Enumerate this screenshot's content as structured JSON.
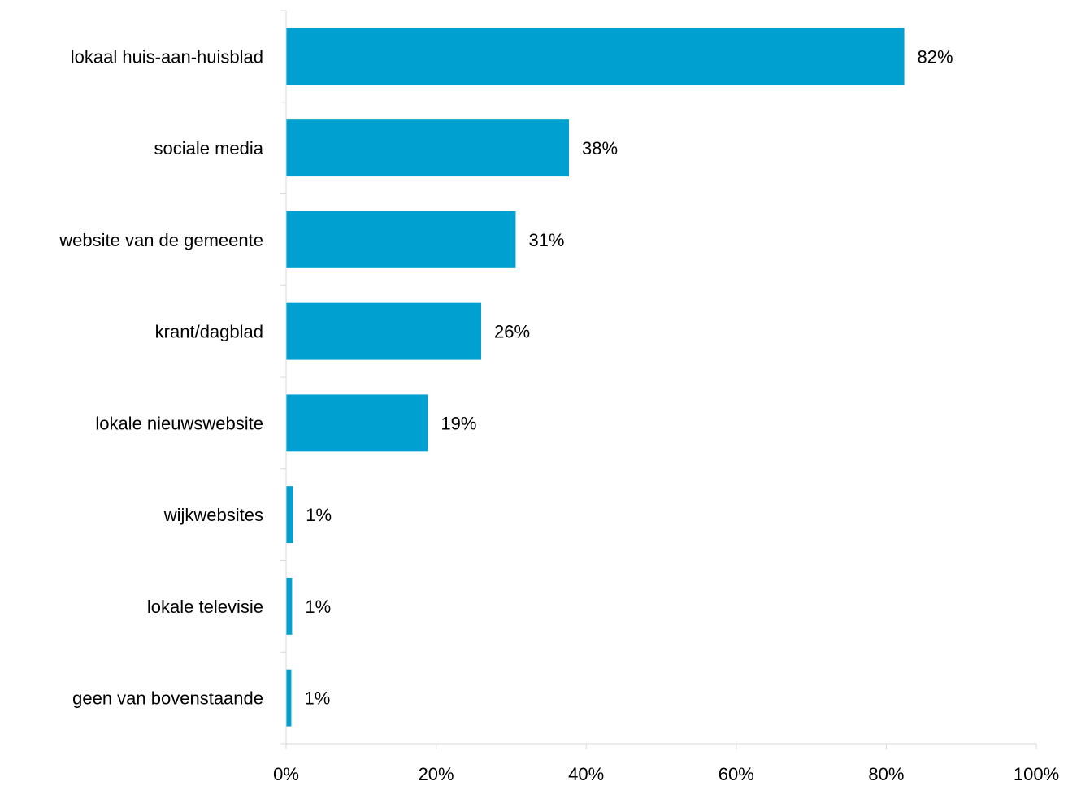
{
  "chart_data": {
    "type": "bar",
    "orientation": "horizontal",
    "categories": [
      "lokaal huis-aan-huisblad",
      "sociale media",
      "website van de gemeente",
      "krant/dagblad",
      "lokale nieuwswebsite",
      "wijkwebsites",
      "lokale televisie",
      "geen van bovenstaande"
    ],
    "values": [
      82.4,
      37.7,
      30.6,
      26.0,
      18.9,
      0.9,
      0.8,
      0.7
    ],
    "value_labels": [
      "82%",
      "38%",
      "31%",
      "26%",
      "19%",
      "1%",
      "1%",
      "1%"
    ],
    "x_ticks": [
      "0%",
      "20%",
      "40%",
      "60%",
      "80%",
      "100%"
    ],
    "xlim": [
      0,
      100
    ],
    "title": "",
    "xlabel": "",
    "ylabel": "",
    "grid": false,
    "legend": "none",
    "bar_color": "#00A0D1",
    "axis_color": "#D9D9D9"
  }
}
